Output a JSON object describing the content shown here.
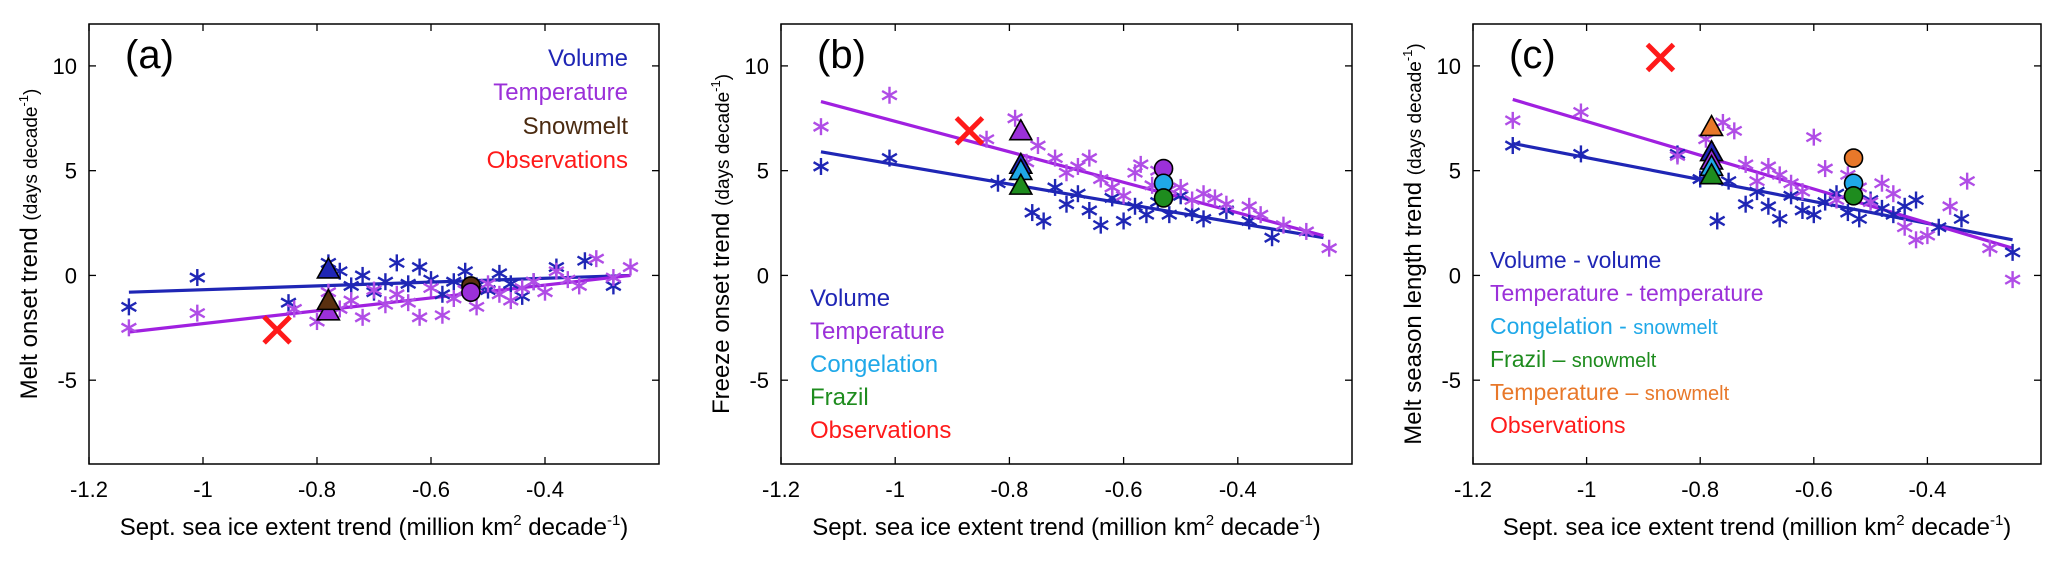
{
  "chart_data": [
    {
      "type": "scatter",
      "panel_label": "(a)",
      "xlabel_main": "Sept. sea ice extent trend (million km",
      "xlabel_sup1": "2",
      "xlabel_mid": " decade",
      "xlabel_sup2": "-1",
      "xlabel_end": ")",
      "ylabel_main": "Melt onset trend ",
      "ylabel_unit": "(days decade",
      "ylabel_sup": "-1",
      "ylabel_end": ")",
      "xlim": [
        -1.2,
        -0.2
      ],
      "ylim": [
        -9,
        12
      ],
      "xticks": [
        -1.2,
        -1,
        -0.8,
        -0.6,
        -0.4
      ],
      "xtick_labels": [
        "-1.2",
        "-1",
        "-0.8",
        "-0.6",
        "-0.4"
      ],
      "yticks": [
        -5,
        0,
        5,
        10
      ],
      "ytick_labels": [
        "-5",
        "0",
        "5",
        "10"
      ],
      "legend": [
        {
          "label": "Volume",
          "color": "#1f26b5"
        },
        {
          "label": "Temperature",
          "color": "#9b30d9"
        },
        {
          "label": "Snowmelt",
          "color": "#4a2a10"
        },
        {
          "label": "Observations",
          "color": "#ff1a1a"
        }
      ],
      "series": [
        {
          "name": "Volume",
          "marker": "asterisk",
          "color": "#1f26b5",
          "x": [
            -1.13,
            -1.01,
            -0.85,
            -0.78,
            -0.76,
            -0.74,
            -0.72,
            -0.7,
            -0.68,
            -0.66,
            -0.64,
            -0.62,
            -0.6,
            -0.58,
            -0.56,
            -0.54,
            -0.52,
            -0.5,
            -0.48,
            -0.46,
            -0.44,
            -0.42,
            -0.38,
            -0.33,
            -0.28
          ],
          "y": [
            -1.5,
            -0.1,
            -1.3,
            0.6,
            0.2,
            -0.5,
            0.0,
            -0.8,
            -0.3,
            0.6,
            -0.4,
            0.4,
            -0.2,
            -0.9,
            -0.3,
            0.2,
            -0.5,
            -0.7,
            0.1,
            -0.4,
            -1.0,
            -0.3,
            0.4,
            0.7,
            -0.5
          ]
        },
        {
          "name": "Temperature",
          "marker": "asterisk",
          "color": "#b04de6",
          "x": [
            -1.13,
            -1.01,
            -0.84,
            -0.8,
            -0.78,
            -0.76,
            -0.74,
            -0.72,
            -0.7,
            -0.68,
            -0.66,
            -0.64,
            -0.62,
            -0.6,
            -0.58,
            -0.56,
            -0.54,
            -0.52,
            -0.5,
            -0.48,
            -0.46,
            -0.44,
            -0.42,
            -0.4,
            -0.38,
            -0.36,
            -0.34,
            -0.31,
            -0.28,
            -0.25
          ],
          "y": [
            -2.5,
            -1.8,
            -1.6,
            -2.2,
            -0.8,
            -1.6,
            -1.2,
            -2.0,
            -0.7,
            -1.4,
            -0.9,
            -1.3,
            -2.0,
            -0.6,
            -1.9,
            -1.1,
            -0.7,
            -1.5,
            -0.4,
            -0.9,
            -1.2,
            -0.6,
            -0.3,
            -0.8,
            0.2,
            -0.2,
            -0.5,
            0.8,
            -0.1,
            0.4
          ]
        },
        {
          "name": "Volume-volume (triangle)",
          "marker": "triangle",
          "color": "#1f26b5",
          "x": [
            -0.78
          ],
          "y": [
            0.3
          ]
        },
        {
          "name": "Temperature-temperature (triangle)",
          "marker": "triangle",
          "color": "#9b30d9",
          "x": [
            -0.78
          ],
          "y": [
            -1.7
          ]
        },
        {
          "name": "Snowmelt (triangle)",
          "marker": "triangle",
          "color": "#5a3010",
          "x": [
            -0.78
          ],
          "y": [
            -1.2
          ]
        },
        {
          "name": "Snowmelt (circle)",
          "marker": "circle",
          "color": "#5a3010",
          "x": [
            -0.53
          ],
          "y": [
            -0.5
          ]
        },
        {
          "name": "Temperature (circle)",
          "marker": "circle",
          "color": "#9b30d9",
          "x": [
            -0.53
          ],
          "y": [
            -0.8
          ]
        },
        {
          "name": "Observations",
          "marker": "x",
          "color": "#ff1a1a",
          "x": [
            -0.87
          ],
          "y": [
            -2.6
          ]
        }
      ],
      "fit_lines": [
        {
          "name": "Volume fit",
          "color": "#1f26b5",
          "x": [
            -1.13,
            -0.25
          ],
          "y": [
            -0.8,
            0.0
          ]
        },
        {
          "name": "Temperature fit",
          "color": "#a020e0",
          "x": [
            -1.13,
            -0.25
          ],
          "y": [
            -2.7,
            0.0
          ]
        }
      ]
    },
    {
      "type": "scatter",
      "panel_label": "(b)",
      "xlabel_main": "Sept. sea ice extent trend (million km",
      "xlabel_sup1": "2",
      "xlabel_mid": " decade",
      "xlabel_sup2": "-1",
      "xlabel_end": ")",
      "ylabel_main": "Freeze onset trend ",
      "ylabel_unit": "(days decade",
      "ylabel_sup": "-1",
      "ylabel_end": ")",
      "xlim": [
        -1.2,
        -0.2
      ],
      "ylim": [
        -9,
        12
      ],
      "xticks": [
        -1.2,
        -1,
        -0.8,
        -0.6,
        -0.4
      ],
      "xtick_labels": [
        "-1.2",
        "-1",
        "-0.8",
        "-0.6",
        "-0.4"
      ],
      "yticks": [
        -5,
        0,
        5,
        10
      ],
      "ytick_labels": [
        "-5",
        "0",
        "5",
        "10"
      ],
      "legend": [
        {
          "label": "Volume",
          "color": "#1f26b5"
        },
        {
          "label": "Temperature",
          "color": "#9b30d9"
        },
        {
          "label": "Congelation",
          "color": "#1fa8e8"
        },
        {
          "label": "Frazil",
          "color": "#1e8c1e"
        },
        {
          "label": "Observations",
          "color": "#ff1a1a"
        }
      ],
      "series": [
        {
          "name": "Volume",
          "marker": "asterisk",
          "color": "#1f26b5",
          "x": [
            -1.13,
            -1.01,
            -0.82,
            -0.78,
            -0.76,
            -0.74,
            -0.72,
            -0.7,
            -0.68,
            -0.66,
            -0.64,
            -0.62,
            -0.6,
            -0.58,
            -0.56,
            -0.54,
            -0.52,
            -0.5,
            -0.48,
            -0.46,
            -0.42,
            -0.38,
            -0.34
          ],
          "y": [
            5.2,
            5.6,
            4.4,
            4.8,
            3.0,
            2.6,
            4.2,
            3.4,
            3.9,
            3.1,
            2.4,
            3.7,
            2.6,
            3.3,
            2.9,
            3.5,
            2.9,
            3.8,
            3.0,
            2.7,
            3.1,
            2.6,
            1.8
          ]
        },
        {
          "name": "Temperature",
          "marker": "asterisk",
          "color": "#b04de6",
          "x": [
            -1.13,
            -1.01,
            -0.84,
            -0.79,
            -0.77,
            -0.75,
            -0.72,
            -0.7,
            -0.68,
            -0.66,
            -0.64,
            -0.62,
            -0.6,
            -0.58,
            -0.57,
            -0.55,
            -0.54,
            -0.52,
            -0.5,
            -0.48,
            -0.46,
            -0.44,
            -0.42,
            -0.38,
            -0.36,
            -0.32,
            -0.28,
            -0.24
          ],
          "y": [
            7.1,
            8.6,
            6.5,
            7.5,
            5.4,
            6.2,
            5.6,
            4.9,
            5.2,
            5.6,
            4.6,
            4.2,
            3.8,
            4.9,
            5.3,
            4.3,
            5.0,
            4.1,
            4.2,
            3.6,
            3.9,
            3.7,
            3.4,
            3.3,
            2.9,
            2.4,
            2.1,
            1.3
          ]
        },
        {
          "name": "Volume (triangle)",
          "marker": "triangle",
          "color": "#1f26b5",
          "x": [
            -0.78
          ],
          "y": [
            5.3
          ]
        },
        {
          "name": "Temperature (triangle)",
          "marker": "triangle",
          "color": "#9b30d9",
          "x": [
            -0.78
          ],
          "y": [
            6.9
          ]
        },
        {
          "name": "Congelation (triangle)",
          "marker": "triangle",
          "color": "#1fa8e8",
          "x": [
            -0.78
          ],
          "y": [
            5.0
          ]
        },
        {
          "name": "Frazil (triangle)",
          "marker": "triangle",
          "color": "#1e8c1e",
          "x": [
            -0.78
          ],
          "y": [
            4.3
          ]
        },
        {
          "name": "Temperature (circle)",
          "marker": "circle",
          "color": "#9b30d9",
          "x": [
            -0.53
          ],
          "y": [
            5.1
          ]
        },
        {
          "name": "Congelation (circle)",
          "marker": "circle",
          "color": "#1fa8e8",
          "x": [
            -0.53
          ],
          "y": [
            4.4
          ]
        },
        {
          "name": "Frazil (circle)",
          "marker": "circle",
          "color": "#1e8c1e",
          "x": [
            -0.53
          ],
          "y": [
            3.7
          ]
        },
        {
          "name": "Observations",
          "marker": "x",
          "color": "#ff1a1a",
          "x": [
            -0.87
          ],
          "y": [
            6.9
          ]
        }
      ],
      "fit_lines": [
        {
          "name": "Volume fit",
          "color": "#1f26b5",
          "x": [
            -1.13,
            -0.25
          ],
          "y": [
            5.9,
            1.8
          ]
        },
        {
          "name": "Temperature fit",
          "color": "#a020e0",
          "x": [
            -1.13,
            -0.25
          ],
          "y": [
            8.3,
            1.9
          ]
        }
      ]
    },
    {
      "type": "scatter",
      "panel_label": "(c)",
      "xlabel_main": "Sept. sea ice extent trend (million km",
      "xlabel_sup1": "2",
      "xlabel_mid": " decade",
      "xlabel_sup2": "-1",
      "xlabel_end": ")",
      "ylabel_main": "Melt season length trend ",
      "ylabel_unit": "(days decade",
      "ylabel_sup": "-1",
      "ylabel_end": ")",
      "xlim": [
        -1.2,
        -0.2
      ],
      "ylim": [
        -9,
        12
      ],
      "xticks": [
        -1.2,
        -1,
        -0.8,
        -0.6,
        -0.4
      ],
      "xtick_labels": [
        "-1.2",
        "-1",
        "-0.8",
        "-0.6",
        "-0.4"
      ],
      "yticks": [
        -5,
        0,
        5,
        10
      ],
      "ytick_labels": [
        "-5",
        "0",
        "5",
        "10"
      ],
      "legend": [
        {
          "label": "Volume - volume",
          "color": "#1f26b5",
          "parts": [
            {
              "t": "Volume - volume",
              "c": "#1f26b5"
            }
          ]
        },
        {
          "label": "Temperature - temperature",
          "color": "#9b30d9",
          "parts": [
            {
              "t": "Temperature - temperature",
              "c": "#9b30d9"
            }
          ]
        },
        {
          "label": "Congelation - snowmelt",
          "color": "#1fa8e8",
          "parts": [
            {
              "t": "Congelation - ",
              "c": "#1fa8e8"
            },
            {
              "t": "snowmelt",
              "c": "#1fa8e8",
              "small": true
            }
          ]
        },
        {
          "label": "Frazil – snowmelt",
          "color": "#1e8c1e",
          "parts": [
            {
              "t": "Frazil – ",
              "c": "#1e8c1e"
            },
            {
              "t": "snowmelt",
              "c": "#1e8c1e",
              "small": true
            }
          ]
        },
        {
          "label": "Temperature – snowmelt",
          "color": "#e8782a",
          "parts": [
            {
              "t": "Temperature – ",
              "c": "#e8782a"
            },
            {
              "t": "snowmelt",
              "c": "#e8782a",
              "small": true
            }
          ]
        },
        {
          "label": "Observations",
          "color": "#ff1a1a",
          "parts": [
            {
              "t": "Observations",
              "c": "#ff1a1a"
            }
          ]
        }
      ],
      "series": [
        {
          "name": "Volume",
          "marker": "asterisk",
          "color": "#1f26b5",
          "x": [
            -1.13,
            -1.01,
            -0.84,
            -0.8,
            -0.77,
            -0.75,
            -0.72,
            -0.7,
            -0.68,
            -0.66,
            -0.64,
            -0.62,
            -0.6,
            -0.58,
            -0.56,
            -0.54,
            -0.52,
            -0.5,
            -0.48,
            -0.46,
            -0.44,
            -0.42,
            -0.38,
            -0.34,
            -0.25
          ],
          "y": [
            6.2,
            5.8,
            5.8,
            4.6,
            2.6,
            4.5,
            3.4,
            4.0,
            3.3,
            2.7,
            3.8,
            3.1,
            2.9,
            3.5,
            3.9,
            3.0,
            2.7,
            3.6,
            3.2,
            2.9,
            3.3,
            3.6,
            2.3,
            2.7,
            1.1
          ]
        },
        {
          "name": "Temperature",
          "marker": "asterisk",
          "color": "#b04de6",
          "x": [
            -1.13,
            -1.01,
            -0.84,
            -0.79,
            -0.76,
            -0.74,
            -0.72,
            -0.7,
            -0.68,
            -0.66,
            -0.64,
            -0.62,
            -0.6,
            -0.58,
            -0.56,
            -0.54,
            -0.52,
            -0.5,
            -0.48,
            -0.46,
            -0.44,
            -0.42,
            -0.4,
            -0.36,
            -0.33,
            -0.29,
            -0.25
          ],
          "y": [
            7.4,
            7.8,
            5.7,
            6.5,
            7.3,
            6.9,
            5.3,
            4.5,
            5.2,
            4.8,
            4.4,
            4.0,
            6.6,
            5.1,
            3.6,
            4.8,
            4.2,
            3.5,
            4.4,
            3.9,
            2.3,
            1.7,
            1.9,
            3.3,
            4.5,
            1.3,
            -0.2
          ]
        },
        {
          "name": "Volume - volume (triangle)",
          "marker": "triangle",
          "color": "#1f26b5",
          "x": [
            -0.78
          ],
          "y": [
            5.9
          ]
        },
        {
          "name": "Temperature - temperature (triangle)",
          "marker": "triangle",
          "color": "#9b30d9",
          "x": [
            -0.78
          ],
          "y": [
            5.5
          ]
        },
        {
          "name": "Congelation - snowmelt (triangle)",
          "marker": "triangle",
          "color": "#1fa8e8",
          "x": [
            -0.78
          ],
          "y": [
            5.2
          ]
        },
        {
          "name": "Frazil – snowmelt (triangle)",
          "marker": "triangle",
          "color": "#1e8c1e",
          "x": [
            -0.78
          ],
          "y": [
            4.8
          ]
        },
        {
          "name": "Temperature – snowmelt (triangle)",
          "marker": "triangle",
          "color": "#e8782a",
          "x": [
            -0.78
          ],
          "y": [
            7.1
          ]
        },
        {
          "name": "Temperature – snowmelt (circle)",
          "marker": "circle",
          "color": "#e8782a",
          "x": [
            -0.53
          ],
          "y": [
            5.6
          ]
        },
        {
          "name": "Congelation - snowmelt (circle)",
          "marker": "circle",
          "color": "#1fa8e8",
          "x": [
            -0.53
          ],
          "y": [
            4.4
          ]
        },
        {
          "name": "Frazil – snowmelt (circle)",
          "marker": "circle",
          "color": "#1e8c1e",
          "x": [
            -0.53
          ],
          "y": [
            3.8
          ]
        },
        {
          "name": "Observations",
          "marker": "x",
          "color": "#ff1a1a",
          "x": [
            -0.87
          ],
          "y": [
            10.4
          ]
        }
      ],
      "fit_lines": [
        {
          "name": "Volume fit",
          "color": "#1f26b5",
          "x": [
            -1.13,
            -0.25
          ],
          "y": [
            6.3,
            1.7
          ]
        },
        {
          "name": "Temperature fit",
          "color": "#a020e0",
          "x": [
            -1.13,
            -0.25
          ],
          "y": [
            8.4,
            1.3
          ]
        }
      ]
    }
  ]
}
